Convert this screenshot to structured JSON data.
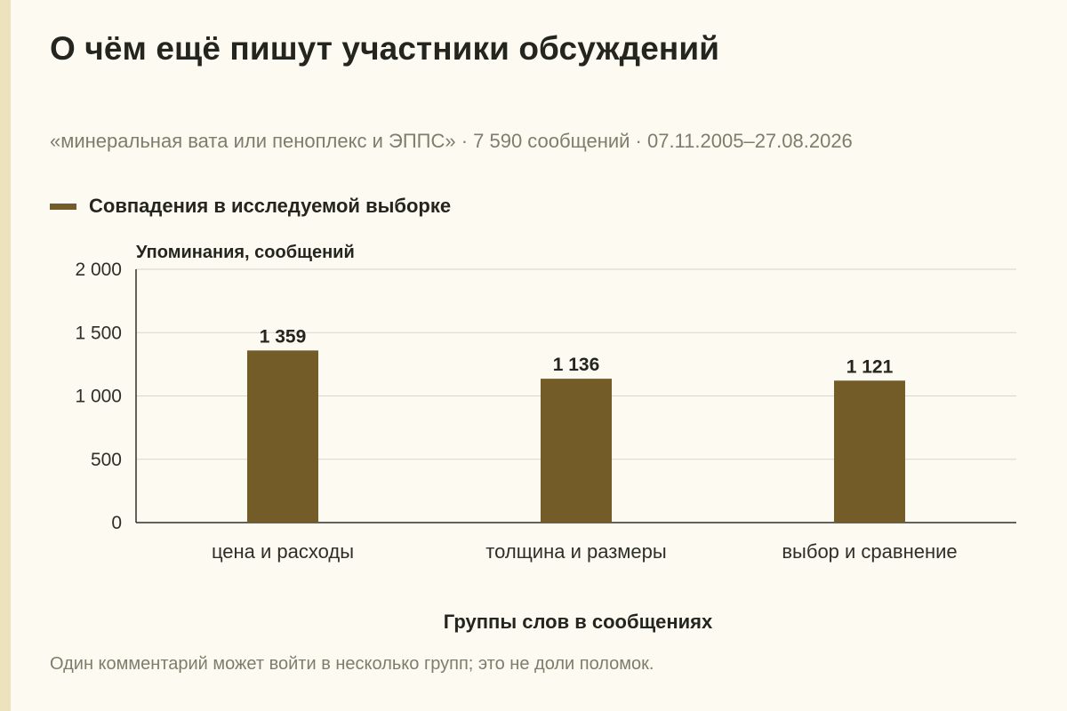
{
  "header": {
    "title": "О чём ещё пишут участники обсуждений",
    "subtitle": "«минеральная вата или пеноплекс и ЭППС» · 7 590 сообщений · 07.11.2005–27.08.2026"
  },
  "legend": {
    "label": "Совпадения в исследуемой выборке",
    "color": "#735c28"
  },
  "footer": {
    "note": "Один комментарий может войти в несколько групп; это не доли поломок."
  },
  "chart_data": {
    "type": "bar",
    "title": "О чём ещё пишут участники обсуждений",
    "xlabel": "Группы слов в сообщениях",
    "ylabel": "Упоминания, сообщений",
    "categories": [
      "цена и расходы",
      "толщина и размеры",
      "выбор и сравнение"
    ],
    "series": [
      {
        "name": "Совпадения в исследуемой выборке",
        "values": [
          1359,
          1136,
          1121
        ],
        "value_labels": [
          "1 359",
          "1 136",
          "1 121"
        ],
        "color": "#735c28"
      }
    ],
    "ylim": [
      0,
      2000
    ],
    "yticks": [
      0,
      500,
      1000,
      1500,
      2000
    ],
    "ytick_labels": [
      "0",
      "500",
      "1 000",
      "1 500",
      "2 000"
    ],
    "grid": true,
    "legend_position": "top-left"
  }
}
